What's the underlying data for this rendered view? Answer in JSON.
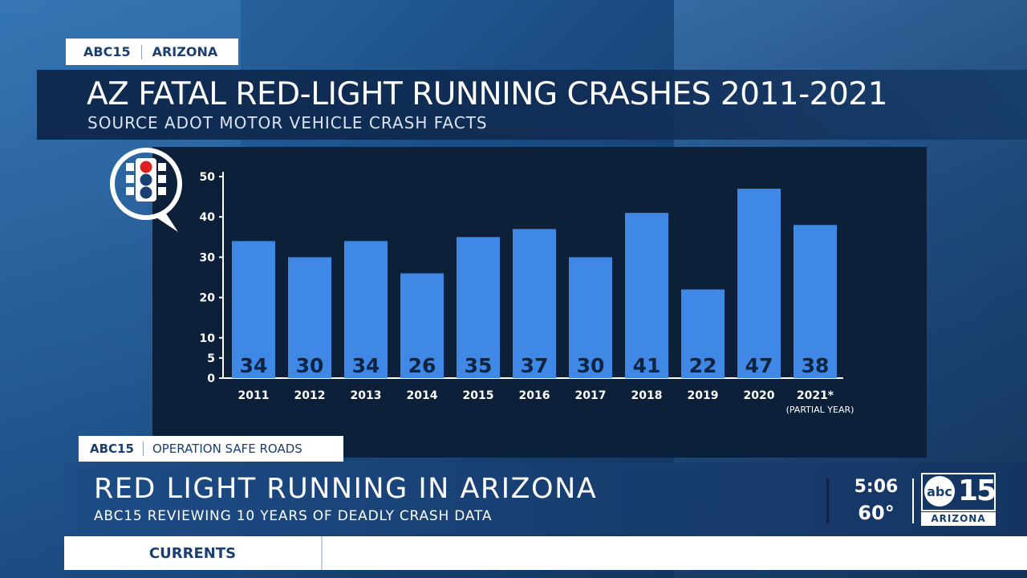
{
  "top_tag": {
    "station": "ABC15",
    "region": "ARIZONA"
  },
  "title": "AZ FATAL RED-LIGHT RUNNING CRASHES 2011-2021",
  "subtitle": "SOURCE ADOT MOTOR VEHICLE CRASH FACTS",
  "icon": "traffic-light-icon",
  "colors": {
    "bar": "#3f88e6",
    "panel": "#0d2039",
    "text": "#ffffff",
    "label": "#0f2440"
  },
  "chart_data": {
    "type": "bar",
    "title": "AZ FATAL RED-LIGHT RUNNING CRASHES 2011-2021",
    "categories": [
      "2011",
      "2012",
      "2013",
      "2014",
      "2015",
      "2016",
      "2017",
      "2018",
      "2019",
      "2020",
      "2021*"
    ],
    "category_note": "(PARTIAL YEAR)",
    "values": [
      34,
      30,
      34,
      26,
      35,
      37,
      30,
      41,
      22,
      47,
      38
    ],
    "yticks": [
      0,
      5,
      10,
      20,
      30,
      40,
      50
    ],
    "ylim": [
      0,
      50
    ],
    "grid": false,
    "legend": "none"
  },
  "lower_third": {
    "segment_station": "ABC15",
    "segment_name": "OPERATION SAFE ROADS",
    "headline": "RED LIGHT RUNNING IN ARIZONA",
    "subhead": "ABC15 REVIEWING 10 YEARS OF DEADLY CRASH DATA",
    "time": "5:06",
    "temperature": "60°"
  },
  "logo": {
    "abc": "abc",
    "number": "15",
    "region": "ARIZONA"
  },
  "ticker": {
    "label": "CURRENTS"
  }
}
